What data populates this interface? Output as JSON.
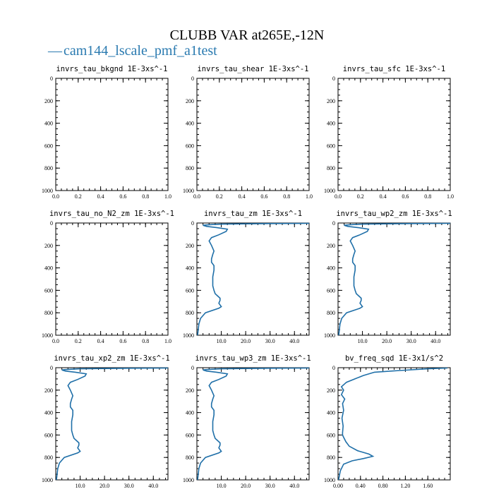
{
  "figure": {
    "title": "CLUBB VAR at265E,-12N",
    "legend": {
      "label": "cam144_lscale_pmf_a1test",
      "color": "#2a7ab0",
      "marker": "—"
    }
  },
  "series_color": "#1f6fa8",
  "chart_data": [
    {
      "type": "line",
      "title": "invrs_tau_bkgnd",
      "units": "1E-3xs^-1",
      "xlim": [
        0,
        1
      ],
      "ylim": [
        1000,
        0
      ],
      "xticks": [
        0,
        0.2,
        0.4,
        0.6,
        0.8,
        1.0
      ],
      "xtick_labels": [
        "0.0",
        "0.2",
        "0.4",
        "0.6",
        "0.8",
        "1.0"
      ],
      "yticks": [
        0,
        200,
        400,
        600,
        800,
        1000
      ],
      "ytick_labels": [
        "0",
        "200",
        "400",
        "600",
        "800",
        "1000"
      ],
      "series": []
    },
    {
      "type": "line",
      "title": "invrs_tau_shear",
      "units": "1E-3xs^-1",
      "xlim": [
        0,
        1
      ],
      "ylim": [
        1000,
        0
      ],
      "xticks": [
        0,
        0.2,
        0.4,
        0.6,
        0.8,
        1.0
      ],
      "xtick_labels": [
        "0.0",
        "0.2",
        "0.4",
        "0.6",
        "0.8",
        "1.0"
      ],
      "yticks": [
        0,
        200,
        400,
        600,
        800,
        1000
      ],
      "ytick_labels": [
        "0",
        "200",
        "400",
        "600",
        "800",
        "1000"
      ],
      "series": []
    },
    {
      "type": "line",
      "title": "invrs_tau_sfc",
      "units": "1E-3xs^-1",
      "xlim": [
        0,
        1
      ],
      "ylim": [
        1000,
        0
      ],
      "xticks": [
        0,
        0.2,
        0.4,
        0.6,
        0.8,
        1.0
      ],
      "xtick_labels": [
        "0.0",
        "0.2",
        "0.4",
        "0.6",
        "0.8",
        "1.0"
      ],
      "yticks": [
        0,
        200,
        400,
        600,
        800,
        1000
      ],
      "ytick_labels": [
        "0",
        "200",
        "400",
        "600",
        "800",
        "1000"
      ],
      "series": []
    },
    {
      "type": "line",
      "title": "invrs_tau_no_N2_zm",
      "units": "1E-3xs^-1",
      "xlim": [
        0,
        1
      ],
      "ylim": [
        1000,
        0
      ],
      "xticks": [
        0,
        0.2,
        0.4,
        0.6,
        0.8,
        1.0
      ],
      "xtick_labels": [
        "0.0",
        "0.2",
        "0.4",
        "0.6",
        "0.8",
        "1.0"
      ],
      "yticks": [
        0,
        200,
        400,
        600,
        800,
        1000
      ],
      "ytick_labels": [
        "0",
        "200",
        "400",
        "600",
        "800",
        "1000"
      ],
      "series": []
    },
    {
      "type": "line",
      "title": "invrs_tau_zm",
      "units": "1E-3xs^-1",
      "xlim": [
        0,
        46
      ],
      "ylim": [
        1000,
        0
      ],
      "xticks": [
        10,
        20,
        30,
        40
      ],
      "xtick_labels": [
        "10.0",
        "20.0",
        "30.0",
        "40.0"
      ],
      "yticks": [
        0,
        200,
        400,
        600,
        800,
        1000
      ],
      "ytick_labels": [
        "0",
        "200",
        "400",
        "600",
        "800",
        "1000"
      ],
      "series": [
        {
          "name": "cam144_lscale_pmf_a1test",
          "x": [
            46,
            30,
            10,
            5,
            2.5,
            4,
            8,
            12.5,
            12,
            9,
            6,
            5,
            6,
            7,
            6.5,
            6,
            6,
            7,
            7,
            6.5,
            6.5,
            7,
            7.5,
            8.5,
            9.5,
            9.5,
            9,
            10,
            9,
            3.5,
            1.5,
            0.8,
            0.5,
            0.3
          ],
          "y": [
            3,
            5,
            10,
            15,
            20,
            30,
            40,
            55,
            75,
            105,
            130,
            160,
            200,
            250,
            280,
            320,
            350,
            380,
            420,
            480,
            560,
            600,
            630,
            650,
            670,
            690,
            715,
            745,
            760,
            800,
            850,
            900,
            960,
            1000
          ]
        }
      ]
    },
    {
      "type": "line",
      "title": "invrs_tau_wp2_zm",
      "units": "1E-3xs^-1",
      "xlim": [
        0,
        46
      ],
      "ylim": [
        1000,
        0
      ],
      "xticks": [
        10,
        20,
        30,
        40
      ],
      "xtick_labels": [
        "10.0",
        "20.0",
        "30.0",
        "40.0"
      ],
      "yticks": [
        0,
        200,
        400,
        600,
        800,
        1000
      ],
      "ytick_labels": [
        "0",
        "200",
        "400",
        "600",
        "800",
        "1000"
      ],
      "series": [
        {
          "name": "cam144_lscale_pmf_a1test",
          "x": [
            46,
            30,
            10,
            5,
            2.5,
            4,
            8,
            12.5,
            12,
            9,
            6,
            5,
            6,
            7,
            6.5,
            6,
            6,
            7,
            7,
            6.5,
            6.5,
            7,
            7.5,
            8.5,
            9.5,
            9.5,
            9,
            10,
            9,
            3.5,
            1.5,
            0.8,
            0.5,
            0.3
          ],
          "y": [
            3,
            5,
            10,
            15,
            20,
            30,
            40,
            55,
            75,
            105,
            130,
            160,
            200,
            250,
            280,
            320,
            350,
            380,
            420,
            480,
            560,
            600,
            630,
            650,
            670,
            690,
            715,
            745,
            760,
            800,
            850,
            900,
            960,
            1000
          ]
        }
      ]
    },
    {
      "type": "line",
      "title": "invrs_tau_xp2_zm",
      "units": "1E-3xs^-1",
      "xlim": [
        0,
        46
      ],
      "ylim": [
        1000,
        0
      ],
      "xticks": [
        10,
        20,
        30,
        40
      ],
      "xtick_labels": [
        "10.0",
        "20.0",
        "30.0",
        "40.0"
      ],
      "yticks": [
        0,
        200,
        400,
        600,
        800,
        1000
      ],
      "ytick_labels": [
        "0",
        "200",
        "400",
        "600",
        "800",
        "1000"
      ],
      "series": [
        {
          "name": "cam144_lscale_pmf_a1test",
          "x": [
            46,
            30,
            10,
            5,
            2.5,
            4,
            8,
            12.5,
            12,
            9,
            6,
            5,
            6,
            7,
            6.5,
            6,
            6,
            7,
            7,
            6.5,
            6.5,
            7,
            7.5,
            8.5,
            9.5,
            9.5,
            9,
            10,
            9,
            3.5,
            1.5,
            0.8,
            0.5,
            0.3
          ],
          "y": [
            3,
            5,
            10,
            15,
            20,
            30,
            40,
            55,
            75,
            105,
            130,
            160,
            200,
            250,
            280,
            320,
            350,
            380,
            420,
            480,
            560,
            600,
            630,
            650,
            670,
            690,
            715,
            745,
            760,
            800,
            850,
            900,
            960,
            1000
          ]
        }
      ]
    },
    {
      "type": "line",
      "title": "invrs_tau_wp3_zm",
      "units": "1E-3xs^-1",
      "xlim": [
        0,
        46
      ],
      "ylim": [
        1000,
        0
      ],
      "xticks": [
        10,
        20,
        30,
        40
      ],
      "xtick_labels": [
        "10.0",
        "20.0",
        "30.0",
        "40.0"
      ],
      "yticks": [
        0,
        200,
        400,
        600,
        800,
        1000
      ],
      "ytick_labels": [
        "0",
        "200",
        "400",
        "600",
        "800",
        "1000"
      ],
      "series": [
        {
          "name": "cam144_lscale_pmf_a1test",
          "x": [
            46,
            30,
            10,
            5,
            2.5,
            4,
            8,
            12.5,
            12,
            9,
            6,
            5,
            6,
            7,
            6.5,
            6,
            6,
            7,
            7,
            6.5,
            6.5,
            7,
            7.5,
            8.5,
            9.5,
            9.5,
            9,
            10,
            9,
            3.5,
            1.5,
            0.8,
            0.5,
            0.3
          ],
          "y": [
            3,
            5,
            10,
            15,
            20,
            30,
            40,
            55,
            75,
            105,
            130,
            160,
            200,
            250,
            280,
            320,
            350,
            380,
            420,
            480,
            560,
            600,
            630,
            650,
            670,
            690,
            715,
            745,
            760,
            800,
            850,
            900,
            960,
            1000
          ]
        }
      ]
    },
    {
      "type": "line",
      "title": "bv_freq_sqd",
      "units": "1E-3x1/s^2",
      "xlim": [
        0,
        2.0
      ],
      "ylim": [
        1000,
        0
      ],
      "xticks": [
        0,
        0.4,
        0.8,
        1.2,
        1.6
      ],
      "xtick_labels": [
        "0.00",
        "0.40",
        "0.80",
        "1.20",
        "1.60"
      ],
      "yticks": [
        0,
        200,
        400,
        600,
        800,
        1000
      ],
      "ytick_labels": [
        "0",
        "200",
        "400",
        "600",
        "800",
        "1000"
      ],
      "series": [
        {
          "name": "cam144_lscale_pmf_a1test",
          "x": [
            1.95,
            1.6,
            1.1,
            0.65,
            0.45,
            0.3,
            0.15,
            0.06,
            0.1,
            0.06,
            0.12,
            0.08,
            0.1,
            0.07,
            0.09,
            0.08,
            0.08,
            0.1,
            0.14,
            0.2,
            0.35,
            0.55,
            0.62,
            0.45,
            0.25,
            0.1,
            0.04,
            0.01
          ],
          "y": [
            3,
            10,
            25,
            40,
            70,
            100,
            130,
            170,
            200,
            240,
            280,
            320,
            380,
            450,
            520,
            580,
            600,
            620,
            660,
            700,
            740,
            770,
            790,
            810,
            830,
            860,
            920,
            1000
          ]
        }
      ]
    }
  ]
}
